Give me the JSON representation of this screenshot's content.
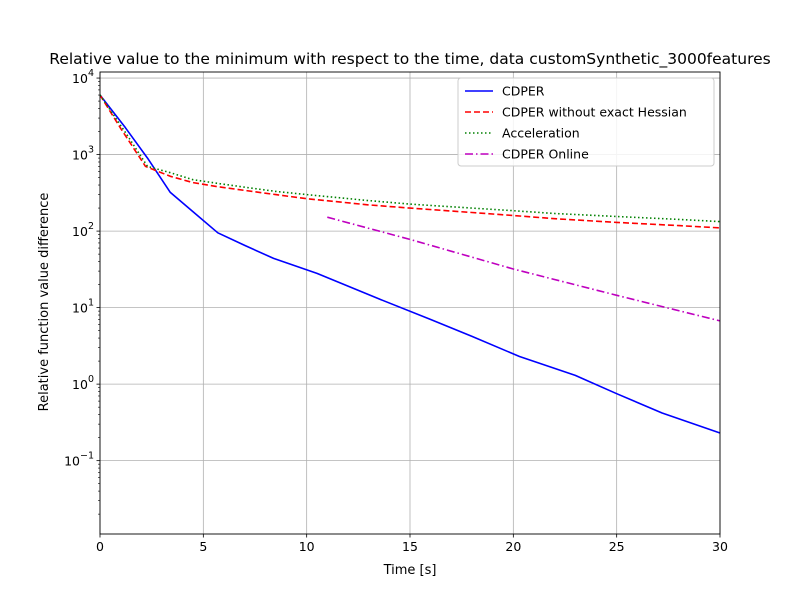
{
  "chart_data": {
    "type": "line",
    "title": "Relative value to the minimum with respect to the time, data customSynthetic_3000features",
    "xlabel": "Time [s]",
    "ylabel": "Relative function value difference",
    "xlim": [
      0,
      30
    ],
    "ylim": [
      0.011,
      12000
    ],
    "yscale": "log",
    "grid": true,
    "legend_position": "top-right",
    "x_ticks": [
      {
        "value": 0,
        "label": "0"
      },
      {
        "value": 5,
        "label": "5"
      },
      {
        "value": 10,
        "label": "10"
      },
      {
        "value": 15,
        "label": "15"
      },
      {
        "value": 20,
        "label": "20"
      },
      {
        "value": 25,
        "label": "25"
      },
      {
        "value": 30,
        "label": "30"
      }
    ],
    "y_ticks": [
      {
        "value": 0.1,
        "base": "10",
        "exp": "−1"
      },
      {
        "value": 1,
        "base": "10",
        "exp": "0"
      },
      {
        "value": 10,
        "base": "10",
        "exp": "1"
      },
      {
        "value": 100,
        "base": "10",
        "exp": "2"
      },
      {
        "value": 1000,
        "base": "10",
        "exp": "3"
      },
      {
        "value": 10000,
        "base": "10",
        "exp": "4"
      }
    ],
    "series": [
      {
        "name": "CDPER",
        "color": "#0000ff",
        "style": "solid",
        "x": [
          0,
          1.2,
          2.3,
          3.4,
          4.6,
          5.7,
          7.0,
          8.4,
          10.5,
          13.5,
          16.0,
          18.0,
          20.3,
          23.0,
          25.0,
          27.2,
          30.0
        ],
        "y": [
          6000,
          2300,
          900,
          320,
          170,
          95,
          65,
          44,
          28,
          13,
          7,
          4.2,
          2.3,
          1.3,
          0.75,
          0.42,
          0.23
        ]
      },
      {
        "name": "CDPER without exact Hessian",
        "color": "#ff0000",
        "style": "dashed",
        "x": [
          0,
          1.0,
          2.2,
          3.4,
          4.5,
          5.7,
          7.0,
          8.5,
          10.0,
          13.0,
          15.0,
          18.0,
          20.0,
          22.0,
          25.0,
          28.0,
          30.0
        ],
        "y": [
          6000,
          2200,
          700,
          520,
          430,
          380,
          340,
          300,
          265,
          220,
          200,
          175,
          160,
          145,
          130,
          118,
          110
        ]
      },
      {
        "name": "Acceleration",
        "color": "#008000",
        "style": "dotted",
        "x": [
          0,
          1.2,
          2.3,
          3.4,
          4.5,
          5.7,
          7.0,
          8.5,
          10.0,
          13.0,
          15.0,
          18.0,
          20.0,
          22.0,
          25.0,
          28.0,
          30.0
        ],
        "y": [
          6000,
          2000,
          700,
          580,
          470,
          420,
          375,
          330,
          300,
          250,
          225,
          200,
          185,
          170,
          155,
          142,
          133
        ]
      },
      {
        "name": "CDPER Online",
        "color": "#bf00bf",
        "style": "dashdot",
        "x": [
          11.0,
          15.0,
          20.0,
          25.0,
          30.0
        ],
        "y": [
          152,
          78,
          32,
          14.5,
          6.7
        ]
      }
    ]
  }
}
